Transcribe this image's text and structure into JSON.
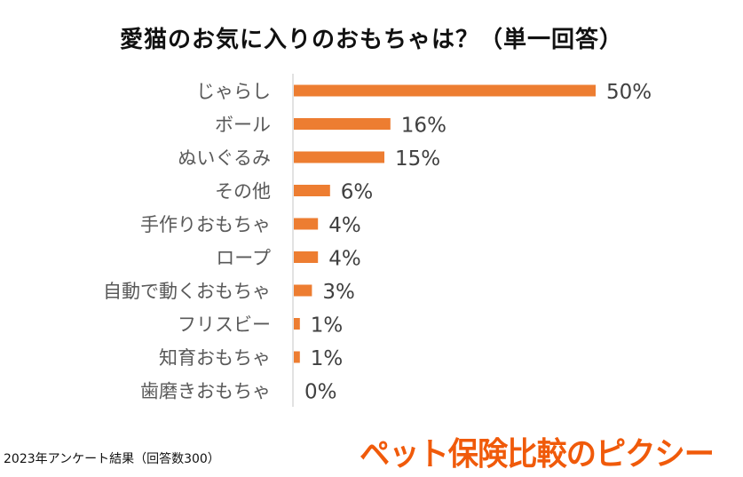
{
  "chart_data": {
    "type": "bar",
    "orientation": "horizontal",
    "title": "愛猫のお気に入りのおもちゃは？（単一回答）",
    "categories": [
      "じゃらし",
      "ボール",
      "ぬいぐるみ",
      "その他",
      "手作りおもちゃ",
      "ロープ",
      "自動で動くおもちゃ",
      "フリスビー",
      "知育おもちゃ",
      "歯磨きおもちゃ"
    ],
    "values": [
      50,
      16,
      15,
      6,
      4,
      4,
      3,
      1,
      1,
      0
    ],
    "data_labels": [
      "50%",
      "16%",
      "15%",
      "6%",
      "4%",
      "4%",
      "3%",
      "1%",
      "1%",
      "0%"
    ],
    "unit": "%",
    "xlim": [
      0,
      50
    ],
    "grid": false,
    "bar_color": "#ed7d31"
  },
  "footnote": "2023年アンケート結果（回答数300）",
  "logo_text": "ペット保険比較のピクシー"
}
